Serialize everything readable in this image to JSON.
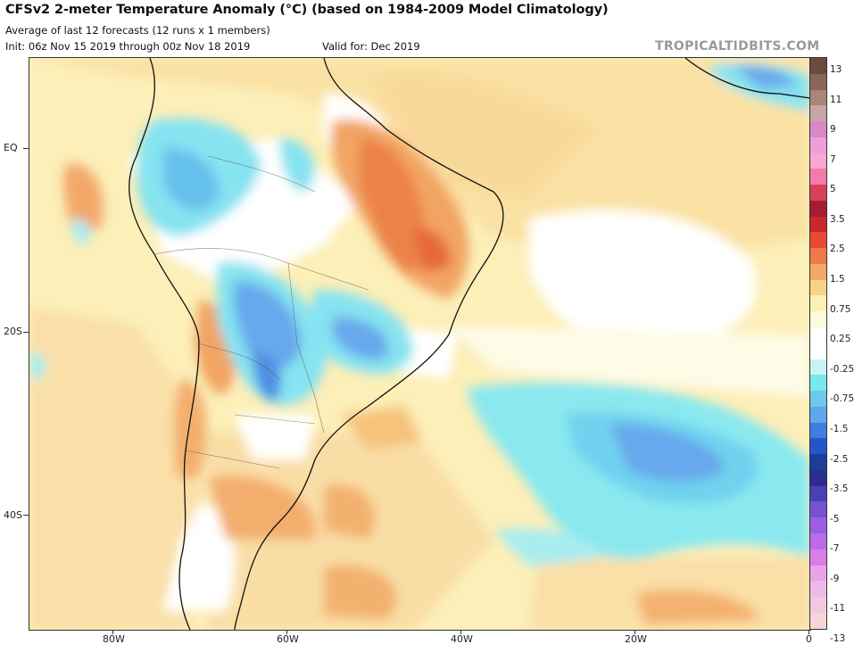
{
  "header": {
    "title": "CFSv2 2-meter Temperature Anomaly (°C) (based on 1984-2009 Model Climatology)",
    "subtitle": "Average of last 12 forecasts (12 runs x 1 members)",
    "init": "Init: 06z Nov 15 2019 through 00z Nov 18 2019",
    "valid": "Valid for: Dec 2019",
    "brand": "TROPICALTIDBITS.COM"
  },
  "map": {
    "latitude_labels": [
      "EQ",
      "20S",
      "40S"
    ],
    "longitude_labels": [
      "80W",
      "60W",
      "40W",
      "20W",
      "0"
    ]
  },
  "colorbar": {
    "labels": [
      "13",
      "11",
      "9",
      "7",
      "5",
      "3.5",
      "2.5",
      "1.5",
      "0.75",
      "0.25",
      "-0.25",
      "-0.75",
      "-1.5",
      "-2.5",
      "-3.5",
      "-5",
      "-7",
      "-9",
      "-11",
      "-13"
    ],
    "colors": [
      "#6b4a3f",
      "#8a6658",
      "#a98677",
      "#c7a6a5",
      "#d987c5",
      "#ee9fd7",
      "#f8a6d2",
      "#f47aa9",
      "#d6425a",
      "#a51d32",
      "#c9272b",
      "#ea4936",
      "#ef7a48",
      "#f2a867",
      "#f7d28a",
      "#fbf0b5",
      "#fdfbdc",
      "#ffffff",
      "#ffffff",
      "#c5f4f4",
      "#7ae8ea",
      "#6dc9ea",
      "#5fa8ea",
      "#3f7ee0",
      "#2556c9",
      "#1d3d9d",
      "#2b2d8c",
      "#4b3fb6",
      "#7452d2",
      "#9a5fe1",
      "#bb6be8",
      "#d77ee8",
      "#e9a2e7",
      "#efb8ea",
      "#f1c8df",
      "#f5d5d5"
    ]
  },
  "legend_colors": {
    "warm_light": "#fbe7a6",
    "warm_mid": "#f6c27c",
    "warm_strong": "#ef8e55",
    "warm_hot": "#e6693b",
    "cool_light": "#a8ecf0",
    "cool_mid": "#6ed9ec",
    "cool_strong": "#66a9ec",
    "neutral": "#ffffff"
  }
}
